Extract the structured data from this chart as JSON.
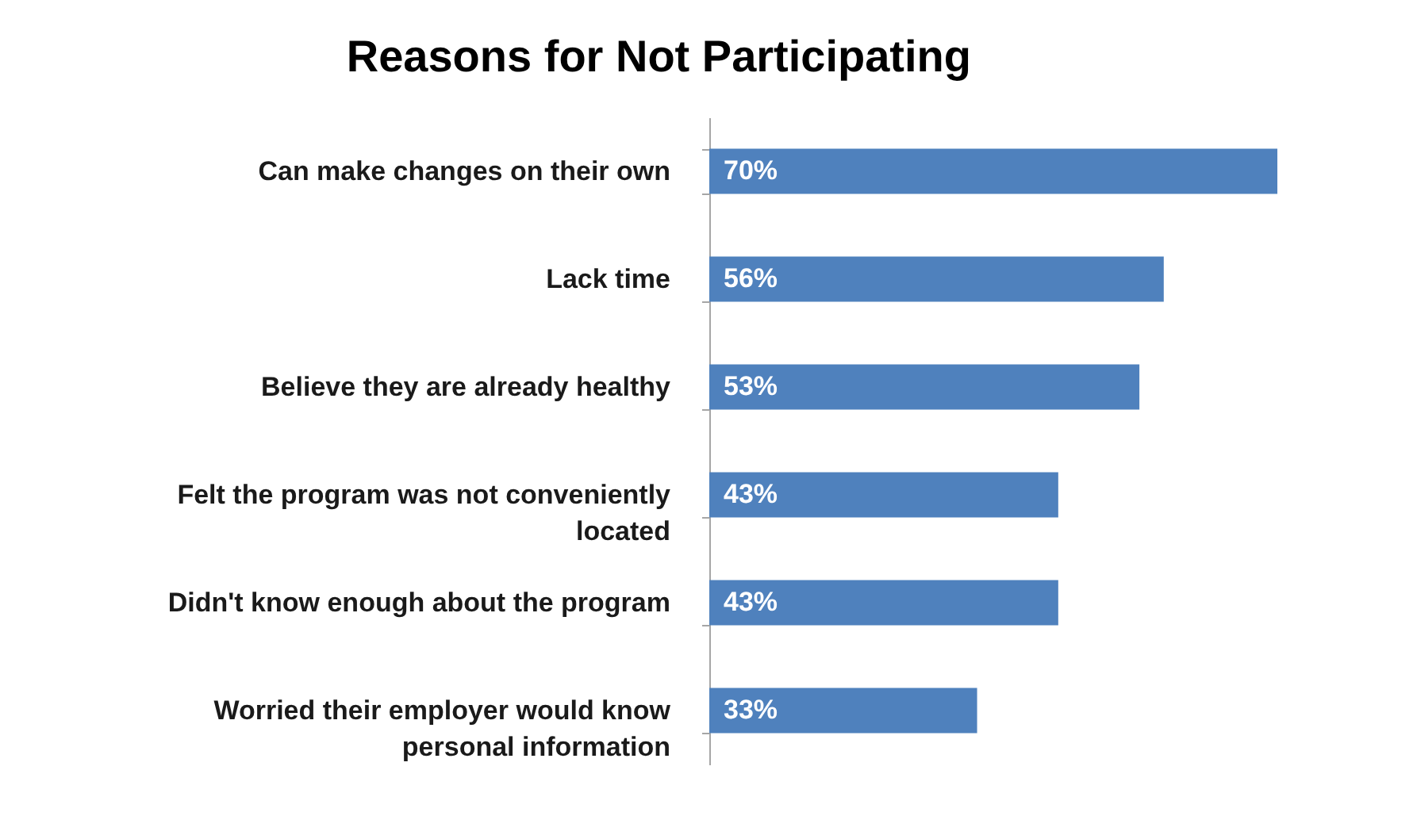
{
  "chart_data": {
    "type": "bar",
    "orientation": "horizontal",
    "title": "Reasons for Not Participating",
    "categories": [
      "Can make changes on their own",
      "Lack time",
      "Believe they are already healthy",
      "Felt the program was not conveniently located",
      "Didn't know enough about the program",
      "Worried their employer would know personal information"
    ],
    "values": [
      70,
      56,
      53,
      43,
      43,
      33
    ],
    "value_labels": [
      "70%",
      "56%",
      "53%",
      "43%",
      "43%",
      "33%"
    ],
    "color": "#4f81bd"
  }
}
